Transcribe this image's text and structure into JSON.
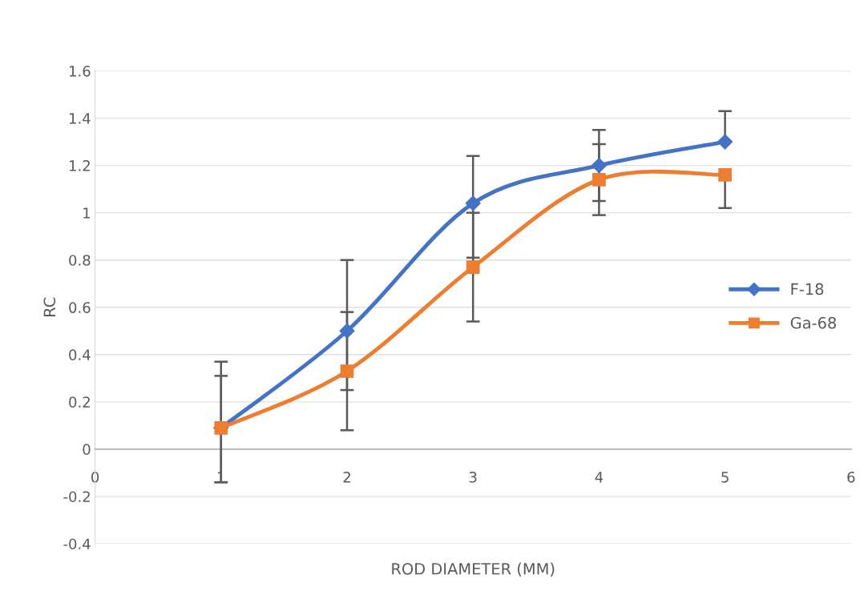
{
  "chart_data": {
    "type": "line",
    "xlabel": "ROD DIAMETER (MM)",
    "ylabel": "RC",
    "x": [
      1,
      2,
      3,
      4,
      5
    ],
    "series": [
      {
        "name": "F-18",
        "color": "#4472c4",
        "marker": "diamond",
        "values": [
          0.09,
          0.5,
          1.04,
          1.2,
          1.3
        ],
        "errors": [
          [
            -0.14,
            0.37
          ],
          [
            0.25,
            0.8
          ],
          [
            0.81,
            1.24
          ],
          [
            1.05,
            1.35
          ],
          [
            1.3,
            1.43
          ]
        ]
      },
      {
        "name": "Ga-68",
        "color": "#ed7d31",
        "marker": "square",
        "values": [
          0.09,
          0.33,
          0.77,
          1.14,
          1.16
        ],
        "errors": [
          [
            -0.14,
            0.31
          ],
          [
            0.08,
            0.58
          ],
          [
            0.54,
            1.0
          ],
          [
            0.99,
            1.29
          ],
          [
            1.02,
            1.16
          ]
        ]
      }
    ],
    "xlim": [
      0,
      6
    ],
    "xticks": [
      0,
      1,
      2,
      3,
      4,
      5,
      6
    ],
    "ylim": [
      -0.4,
      1.6
    ],
    "yticks": [
      -0.4,
      -0.2,
      0,
      0.2,
      0.4,
      0.6,
      0.8,
      1,
      1.2,
      1.4,
      1.6
    ],
    "grid": "y",
    "legend": "right",
    "line_style": "solid"
  }
}
